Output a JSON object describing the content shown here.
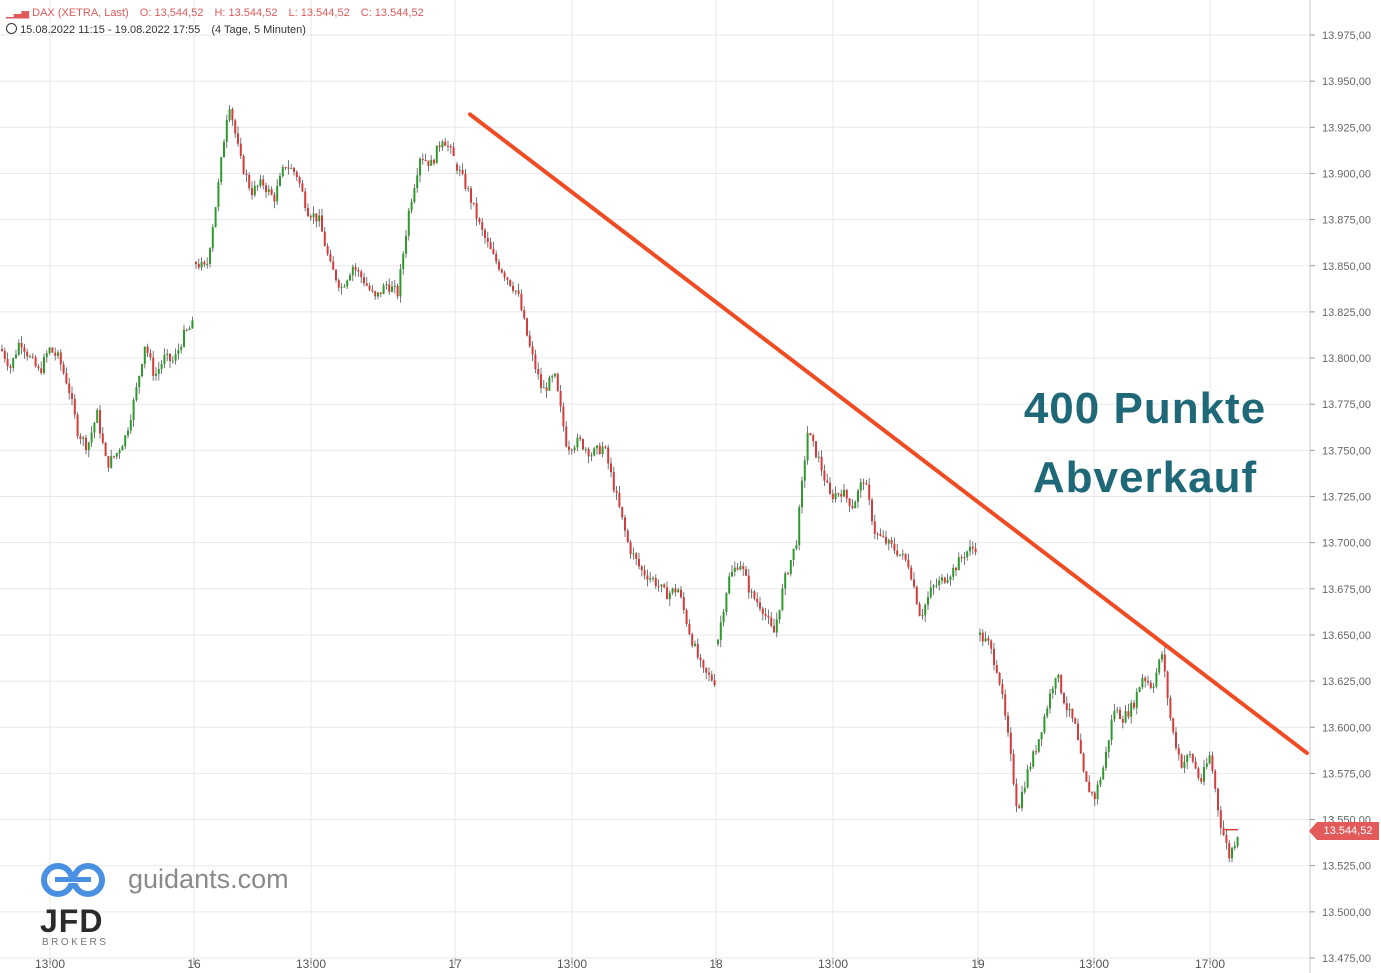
{
  "header": {
    "instrument": "DAX (XETRA, Last)",
    "open": "O: 13,544,52",
    "high": "H: 13.544,52",
    "low": "L: 13.544,52",
    "close": "C: 13.544,52",
    "range": "15.08.2022 11:15 - 19.08.2022 17:55",
    "period": "(4 Tage, 5 Minuten)"
  },
  "annotation": {
    "line1": "400 Punkte",
    "line2": "Abverkauf"
  },
  "price_tag": "13.544,52",
  "logo": {
    "site": "guidants.com",
    "brand": "JFD",
    "sub": "BROKERS"
  },
  "colors": {
    "up": "#2e9a2e",
    "down": "#d63a3a",
    "wick": "#555555",
    "trendline": "#f04b23",
    "annotation": "#1e6878",
    "price_tag": "#e25a5a",
    "grid": "#e8e8e8"
  },
  "chart_data": {
    "type": "candlestick",
    "title": "",
    "y_axis": {
      "min": 13475,
      "max": 13975,
      "step": 25,
      "labels": [
        "13.975,00",
        "13.950,00",
        "13.925,00",
        "13.900,00",
        "13.875,00",
        "13.850,00",
        "13.825,00",
        "13.800,00",
        "13.775,00",
        "13.750,00",
        "13.725,00",
        "13.700,00",
        "13.675,00",
        "13.650,00",
        "13.625,00",
        "13.600,00",
        "13.575,00",
        "13.550,00",
        "13.525,00",
        "13.500,00",
        "13.475,00"
      ]
    },
    "x_axis": {
      "labels": [
        "13:00",
        "16",
        "13:00",
        "17",
        "13:00",
        "18",
        "13:00",
        "19",
        "13:00",
        "17:00"
      ]
    },
    "close_path": [
      {
        "day": "15",
        "points": [
          13805,
          13795,
          13810,
          13800,
          13792,
          13805,
          13800,
          13785,
          13760,
          13752,
          13770,
          13742,
          13748,
          13758,
          13780,
          13808,
          13790,
          13800,
          13798,
          13812,
          13818
        ]
      },
      {
        "day": "16",
        "points": [
          13852,
          13848,
          13890,
          13940,
          13908,
          13890,
          13895,
          13886,
          13905,
          13900,
          13880,
          13875,
          13850,
          13838,
          13850,
          13842,
          13832,
          13840,
          13835,
          13880,
          13910,
          13905,
          13920,
          13908
        ]
      },
      {
        "day": "17",
        "points": [
          13905,
          13890,
          13870,
          13855,
          13845,
          13835,
          13805,
          13782,
          13790,
          13752,
          13755,
          13748,
          13752,
          13725,
          13698,
          13685,
          13680,
          13672,
          13675,
          13650,
          13630,
          13625
        ]
      },
      {
        "day": "18",
        "points": [
          13645,
          13680,
          13690,
          13672,
          13665,
          13650,
          13680,
          13700,
          13760,
          13745,
          13725,
          13728,
          13720,
          13735,
          13705,
          13700,
          13695,
          13688,
          13660,
          13675,
          13680,
          13686,
          13695,
          13698
        ]
      },
      {
        "day": "19",
        "points": [
          13650,
          13645,
          13630,
          13595,
          13555,
          13575,
          13590,
          13610,
          13630,
          13612,
          13600,
          13570,
          13562,
          13580,
          13610,
          13605,
          13612,
          13628,
          13622,
          13640,
          13600,
          13580,
          13585,
          13570,
          13585,
          13550,
          13530,
          13544.52
        ]
      }
    ],
    "trendline": [
      {
        "label": "17",
        "value": 13932
      },
      {
        "value": 13586
      }
    ],
    "last_price": 13544.52,
    "grid": true
  }
}
